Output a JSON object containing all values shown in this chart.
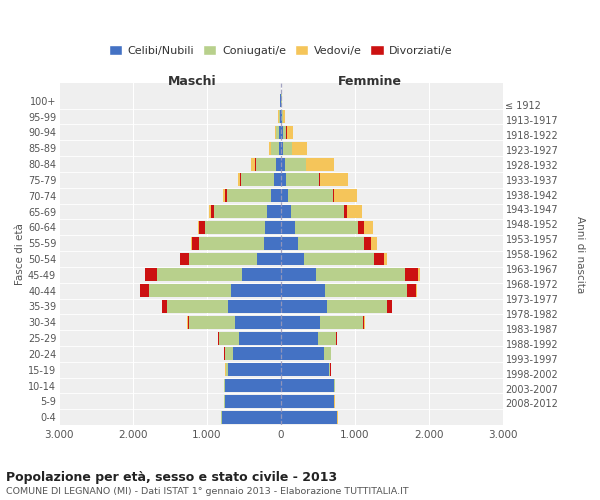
{
  "age_groups": [
    "0-4",
    "5-9",
    "10-14",
    "15-19",
    "20-24",
    "25-29",
    "30-34",
    "35-39",
    "40-44",
    "45-49",
    "50-54",
    "55-59",
    "60-64",
    "65-69",
    "70-74",
    "75-79",
    "80-84",
    "85-89",
    "90-94",
    "95-99",
    "100+"
  ],
  "birth_years": [
    "2008-2012",
    "2003-2007",
    "1998-2002",
    "1993-1997",
    "1988-1992",
    "1983-1987",
    "1978-1982",
    "1973-1977",
    "1968-1972",
    "1963-1967",
    "1958-1962",
    "1953-1957",
    "1948-1952",
    "1943-1947",
    "1938-1942",
    "1933-1937",
    "1928-1932",
    "1923-1927",
    "1918-1922",
    "1913-1917",
    "≤ 1912"
  ],
  "males": {
    "celibi": [
      800,
      760,
      760,
      720,
      650,
      560,
      620,
      720,
      680,
      530,
      320,
      230,
      210,
      180,
      130,
      90,
      60,
      30,
      20,
      10,
      5
    ],
    "coniugati": [
      5,
      5,
      10,
      25,
      110,
      280,
      620,
      820,
      1100,
      1150,
      920,
      880,
      820,
      720,
      600,
      450,
      280,
      100,
      40,
      15,
      5
    ],
    "vedovi": [
      1,
      1,
      1,
      2,
      2,
      2,
      2,
      2,
      2,
      3,
      5,
      8,
      10,
      15,
      20,
      30,
      50,
      30,
      15,
      5,
      0
    ],
    "divorziati": [
      1,
      1,
      1,
      2,
      3,
      8,
      20,
      60,
      120,
      160,
      120,
      90,
      80,
      50,
      30,
      15,
      8,
      5,
      5,
      2,
      0
    ]
  },
  "females": {
    "nubili": [
      760,
      720,
      720,
      650,
      580,
      500,
      530,
      620,
      600,
      480,
      310,
      230,
      190,
      140,
      100,
      75,
      55,
      35,
      25,
      15,
      5
    ],
    "coniugate": [
      5,
      5,
      10,
      20,
      100,
      250,
      580,
      820,
      1100,
      1200,
      950,
      900,
      850,
      720,
      600,
      440,
      280,
      110,
      50,
      15,
      5
    ],
    "vedove": [
      1,
      1,
      1,
      2,
      2,
      3,
      5,
      10,
      15,
      30,
      50,
      80,
      120,
      200,
      300,
      380,
      380,
      200,
      80,
      20,
      5
    ],
    "divorziate": [
      1,
      1,
      1,
      2,
      3,
      8,
      20,
      60,
      130,
      170,
      130,
      90,
      80,
      40,
      25,
      15,
      10,
      8,
      5,
      2,
      0
    ]
  },
  "colors": {
    "celibi": "#4472C4",
    "coniugati": "#b8d08c",
    "vedovi": "#f5c55a",
    "divorziati": "#cc1111"
  },
  "title": "Popolazione per età, sesso e stato civile - 2013",
  "subtitle": "COMUNE DI LEGNANO (MI) - Dati ISTAT 1° gennaio 2013 - Elaborazione TUTTITALIA.IT",
  "xlabel_left": "Maschi",
  "xlabel_right": "Femmine",
  "ylabel_left": "Fasce di età",
  "ylabel_right": "Anni di nascita",
  "xlim": 3000,
  "legend_labels": [
    "Celibi/Nubili",
    "Coniugati/e",
    "Vedovi/e",
    "Divorziati/e"
  ],
  "background_color": "#ffffff",
  "grid_color": "#cccccc",
  "xtick_labels": [
    "3.000",
    "2.000",
    "1.000",
    "0",
    "1.000",
    "2.000",
    "3.000"
  ]
}
